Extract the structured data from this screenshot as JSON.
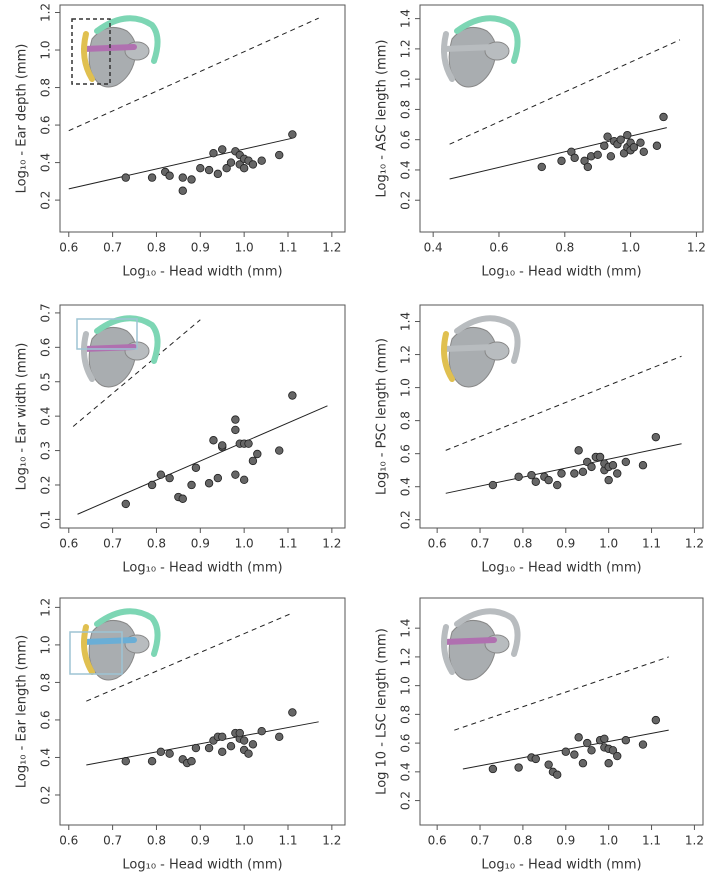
{
  "chart_data": [
    {
      "type": "scatter",
      "x_label": "Log₁₀ - Head width (mm)",
      "y_label": "Log₁₀ - Ear depth (mm)",
      "color": "#666666",
      "xlim": [
        0.58,
        1.23
      ],
      "ylim": [
        0.03,
        1.24
      ],
      "xticks": [
        0.6,
        0.7,
        0.8,
        0.9,
        {
          "value": 1,
          "label": "1.0"
        },
        1.1,
        1.2
      ],
      "yticks": [
        0.2,
        0.4,
        0.6,
        0.8,
        {
          "value": 1,
          "label": "1.0"
        },
        1.2
      ],
      "x": [
        0.73,
        0.79,
        0.82,
        0.83,
        0.86,
        0.86,
        0.88,
        0.9,
        0.92,
        0.93,
        0.94,
        0.95,
        0.96,
        0.97,
        0.98,
        0.99,
        0.99,
        1.0,
        1.0,
        1.01,
        1.02,
        1.04,
        1.08,
        1.11
      ],
      "values": [
        0.32,
        0.32,
        0.35,
        0.33,
        0.32,
        0.25,
        0.31,
        0.37,
        0.36,
        0.45,
        0.34,
        0.47,
        0.37,
        0.4,
        0.46,
        0.44,
        0.39,
        0.42,
        0.37,
        0.41,
        0.39,
        0.41,
        0.44,
        0.55
      ],
      "lines": [
        {
          "style": "solid",
          "x": [
            0.6,
            1.11
          ],
          "values": [
            0.26,
            0.53
          ]
        },
        {
          "style": "dashed",
          "x": [
            0.6,
            1.17
          ],
          "values": [
            0.57,
            1.17
          ]
        }
      ]
    },
    {
      "type": "scatter",
      "x_label": "Log₁₀ - Head width (mm)",
      "y_label": "Log₁₀ - ASC length (mm)",
      "color": "#666666",
      "xlim": [
        0.36,
        1.22
      ],
      "ylim": [
        -0.01,
        1.49
      ],
      "xticks": [
        0.4,
        0.6,
        0.8,
        {
          "value": 1,
          "label": "1.0"
        },
        1.2
      ],
      "yticks": [
        0.2,
        0.4,
        0.6,
        0.8,
        {
          "value": 1,
          "label": "1.0"
        },
        1.2,
        1.4
      ],
      "x": [
        0.73,
        0.79,
        0.82,
        0.83,
        0.86,
        0.87,
        0.88,
        0.9,
        0.92,
        0.93,
        0.94,
        0.95,
        0.96,
        0.97,
        0.98,
        0.99,
        0.99,
        1.0,
        1.0,
        1.01,
        1.03,
        1.04,
        1.08,
        1.1
      ],
      "values": [
        0.42,
        0.46,
        0.52,
        0.48,
        0.46,
        0.42,
        0.49,
        0.5,
        0.56,
        0.62,
        0.49,
        0.59,
        0.57,
        0.6,
        0.51,
        0.63,
        0.55,
        0.53,
        0.58,
        0.55,
        0.58,
        0.52,
        0.56,
        0.75
      ],
      "lines": [
        {
          "style": "solid",
          "x": [
            0.45,
            1.11
          ],
          "values": [
            0.34,
            0.68
          ]
        },
        {
          "style": "dashed",
          "x": [
            0.45,
            1.15
          ],
          "values": [
            0.57,
            1.26
          ]
        }
      ]
    },
    {
      "type": "scatter",
      "x_label": "Log₁₀ - Head width (mm)",
      "y_label": "Log₁₀ - Ear width (mm)",
      "color": "#666666",
      "xlim": [
        0.58,
        1.23
      ],
      "ylim": [
        0.075,
        0.723
      ],
      "xticks": [
        0.6,
        0.7,
        0.8,
        0.9,
        {
          "value": 1,
          "label": "1.0"
        },
        1.1,
        1.2
      ],
      "yticks": [
        0.1,
        0.2,
        0.3,
        0.4,
        0.5,
        0.6,
        0.7
      ],
      "x": [
        0.73,
        0.79,
        0.81,
        0.83,
        0.85,
        0.86,
        0.88,
        0.89,
        0.92,
        0.93,
        0.94,
        0.95,
        0.95,
        0.98,
        0.98,
        0.98,
        0.99,
        1.0,
        1.0,
        1.01,
        1.02,
        1.03,
        1.08,
        1.11
      ],
      "values": [
        0.145,
        0.2,
        0.23,
        0.22,
        0.165,
        0.16,
        0.2,
        0.25,
        0.205,
        0.33,
        0.22,
        0.31,
        0.315,
        0.36,
        0.39,
        0.23,
        0.32,
        0.215,
        0.32,
        0.32,
        0.27,
        0.29,
        0.3,
        0.46
      ],
      "lines": [
        {
          "style": "solid",
          "x": [
            0.62,
            1.19
          ],
          "values": [
            0.115,
            0.43
          ]
        },
        {
          "style": "dashed",
          "x": [
            0.61,
            0.9
          ],
          "values": [
            0.37,
            0.68
          ]
        }
      ]
    },
    {
      "type": "scatter",
      "x_label": "Log₁₀ - Head width (mm)",
      "y_label": "Log₁₀ - PSC length (mm)",
      "color": "#666666",
      "xlim": [
        0.56,
        1.22
      ],
      "ylim": [
        0.15,
        1.5
      ],
      "xticks": [
        0.6,
        0.7,
        0.8,
        0.9,
        {
          "value": 1,
          "label": "1.0"
        },
        1.1,
        1.2
      ],
      "yticks": [
        0.2,
        0.4,
        0.6,
        0.8,
        {
          "value": 1,
          "label": "1.0"
        },
        1.2,
        1.4
      ],
      "x": [
        0.73,
        0.79,
        0.82,
        0.83,
        0.85,
        0.86,
        0.88,
        0.89,
        0.92,
        0.93,
        0.94,
        0.95,
        0.96,
        0.97,
        0.98,
        0.99,
        0.99,
        1.0,
        1.0,
        1.01,
        1.02,
        1.04,
        1.08,
        1.11
      ],
      "values": [
        0.41,
        0.46,
        0.47,
        0.43,
        0.46,
        0.44,
        0.41,
        0.48,
        0.48,
        0.62,
        0.49,
        0.55,
        0.52,
        0.58,
        0.58,
        0.5,
        0.54,
        0.44,
        0.52,
        0.53,
        0.48,
        0.55,
        0.53,
        0.7
      ],
      "lines": [
        {
          "style": "solid",
          "x": [
            0.62,
            1.17
          ],
          "values": [
            0.36,
            0.66
          ]
        },
        {
          "style": "dashed",
          "x": [
            0.62,
            1.17
          ],
          "values": [
            0.62,
            1.19
          ]
        }
      ]
    },
    {
      "type": "scatter",
      "x_label": "Log₁₀ - Head width (mm)",
      "y_label": "Log₁₀ - Ear length (mm)",
      "color": "#666666",
      "xlim": [
        0.58,
        1.23
      ],
      "ylim": [
        0.04,
        1.25
      ],
      "xticks": [
        0.6,
        0.7,
        0.8,
        0.9,
        {
          "value": 1,
          "label": "1.0"
        },
        1.1,
        1.2
      ],
      "yticks": [
        0.2,
        0.4,
        0.6,
        0.8,
        {
          "value": 1,
          "label": "1.0"
        },
        1.2
      ],
      "x": [
        0.73,
        0.79,
        0.81,
        0.83,
        0.86,
        0.87,
        0.88,
        0.89,
        0.92,
        0.93,
        0.94,
        0.95,
        0.95,
        0.97,
        0.98,
        0.99,
        0.99,
        1.0,
        1.0,
        1.01,
        1.02,
        1.04,
        1.08,
        1.11
      ],
      "values": [
        0.38,
        0.38,
        0.43,
        0.42,
        0.39,
        0.37,
        0.38,
        0.45,
        0.45,
        0.49,
        0.51,
        0.51,
        0.43,
        0.46,
        0.53,
        0.5,
        0.53,
        0.44,
        0.49,
        0.42,
        0.47,
        0.54,
        0.51,
        0.64
      ],
      "lines": [
        {
          "style": "solid",
          "x": [
            0.64,
            1.17
          ],
          "values": [
            0.36,
            0.59
          ]
        },
        {
          "style": "dashed",
          "x": [
            0.64,
            1.11
          ],
          "values": [
            0.7,
            1.17
          ]
        }
      ]
    },
    {
      "type": "scatter",
      "x_label": "Log₁₀ - Head width (mm)",
      "y_label": "Log 10 - LSC length (mm)",
      "color": "#666666",
      "xlim": [
        0.56,
        1.22
      ],
      "ylim": [
        0.03,
        1.61
      ],
      "xticks": [
        0.6,
        0.7,
        0.8,
        0.9,
        {
          "value": 1,
          "label": "1.0"
        },
        1.1,
        1.2
      ],
      "yticks": [
        0.2,
        0.4,
        0.6,
        0.8,
        {
          "value": 1,
          "label": "1.0"
        },
        1.2,
        1.4
      ],
      "x": [
        0.73,
        0.79,
        0.82,
        0.83,
        0.86,
        0.87,
        0.88,
        0.9,
        0.92,
        0.93,
        0.94,
        0.95,
        0.96,
        0.98,
        0.99,
        0.99,
        1.0,
        1.0,
        1.01,
        1.02,
        1.04,
        1.08,
        1.11
      ],
      "values": [
        0.42,
        0.43,
        0.5,
        0.49,
        0.45,
        0.4,
        0.38,
        0.54,
        0.52,
        0.64,
        0.46,
        0.6,
        0.55,
        0.62,
        0.63,
        0.57,
        0.46,
        0.56,
        0.55,
        0.51,
        0.62,
        0.59,
        0.76
      ],
      "lines": [
        {
          "style": "solid",
          "x": [
            0.66,
            1.14
          ],
          "values": [
            0.42,
            0.69
          ]
        },
        {
          "style": "dashed",
          "x": [
            0.64,
            1.14
          ],
          "values": [
            0.69,
            1.2
          ]
        }
      ]
    }
  ]
}
